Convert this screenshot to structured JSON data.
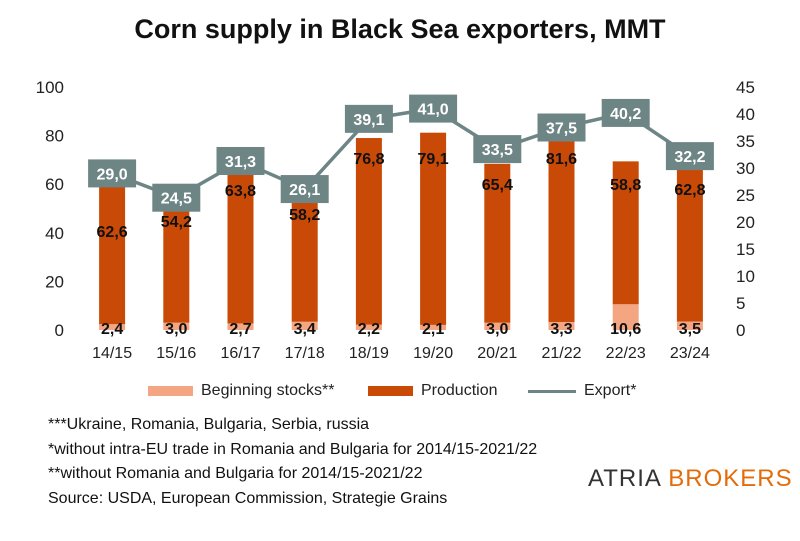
{
  "colors": {
    "beginning_stocks": "#f4a582",
    "production": "#c94a06",
    "export": "#6e8585",
    "logo_accent": "#e36c09"
  },
  "chart_data": {
    "type": "bar+line",
    "title": "Corn supply in Black Sea exporters, MMT",
    "categories": [
      "14/15",
      "15/16",
      "16/17",
      "17/18",
      "18/19",
      "19/20",
      "20/21",
      "21/22",
      "22/23",
      "23/24"
    ],
    "series": [
      {
        "name": "Beginning stocks**",
        "type": "stacked-bar",
        "axis": "left",
        "values": [
          2.4,
          3.0,
          2.7,
          3.4,
          2.2,
          2.1,
          3.0,
          3.3,
          10.6,
          3.5
        ],
        "labels": [
          "2,4",
          "3,0",
          "2,7",
          "3,4",
          "2,2",
          "2,1",
          "3,0",
          "3,3",
          "10,6",
          "3,5"
        ]
      },
      {
        "name": "Production",
        "type": "stacked-bar",
        "axis": "left",
        "values": [
          62.6,
          54.2,
          63.8,
          58.2,
          76.8,
          79.1,
          65.4,
          81.6,
          58.8,
          62.8
        ],
        "labels": [
          "62,6",
          "54,2",
          "63,8",
          "58,2",
          "76,8",
          "79,1",
          "65,4",
          "81,6",
          "58,8",
          "62,8"
        ]
      },
      {
        "name": "Export*",
        "type": "line",
        "axis": "right",
        "values": [
          29.0,
          24.5,
          31.3,
          26.1,
          39.1,
          41.0,
          33.5,
          37.5,
          40.2,
          32.2
        ],
        "labels": [
          "29,0",
          "24,5",
          "31,3",
          "26,1",
          "39,1",
          "41,0",
          "33,5",
          "37,5",
          "40,2",
          "32,2"
        ]
      }
    ],
    "y_left": {
      "min": 0,
      "max": 100,
      "ticks": [
        0,
        20,
        40,
        60,
        80,
        100
      ],
      "tick_labels": [
        "0",
        "20",
        "40",
        "60",
        "80",
        "100"
      ]
    },
    "y_right": {
      "min": 0,
      "max": 45,
      "ticks": [
        0,
        5,
        10,
        15,
        20,
        25,
        30,
        35,
        40,
        45
      ],
      "tick_labels": [
        "0",
        "5",
        "10",
        "15",
        "20",
        "25",
        "30",
        "35",
        "40",
        "45"
      ]
    },
    "grid": false,
    "legend_position": "bottom"
  },
  "legend": {
    "beginning_stocks": "Beginning stocks**",
    "production": "Production",
    "export": "Export*"
  },
  "notes": {
    "countries": "***Ukraine, Romania, Bulgaria, Serbia, russia",
    "intra_eu": "*without intra-EU trade in Romania and Bulgaria for 2014/15-2021/22",
    "without_ro_bg": "**without Romania and Bulgaria for 2014/15-2021/22",
    "source": "Source: USDA, European Commission, Strategie Grains"
  },
  "logo": {
    "part1": "ATRIA",
    "part2": " BROKERS"
  }
}
